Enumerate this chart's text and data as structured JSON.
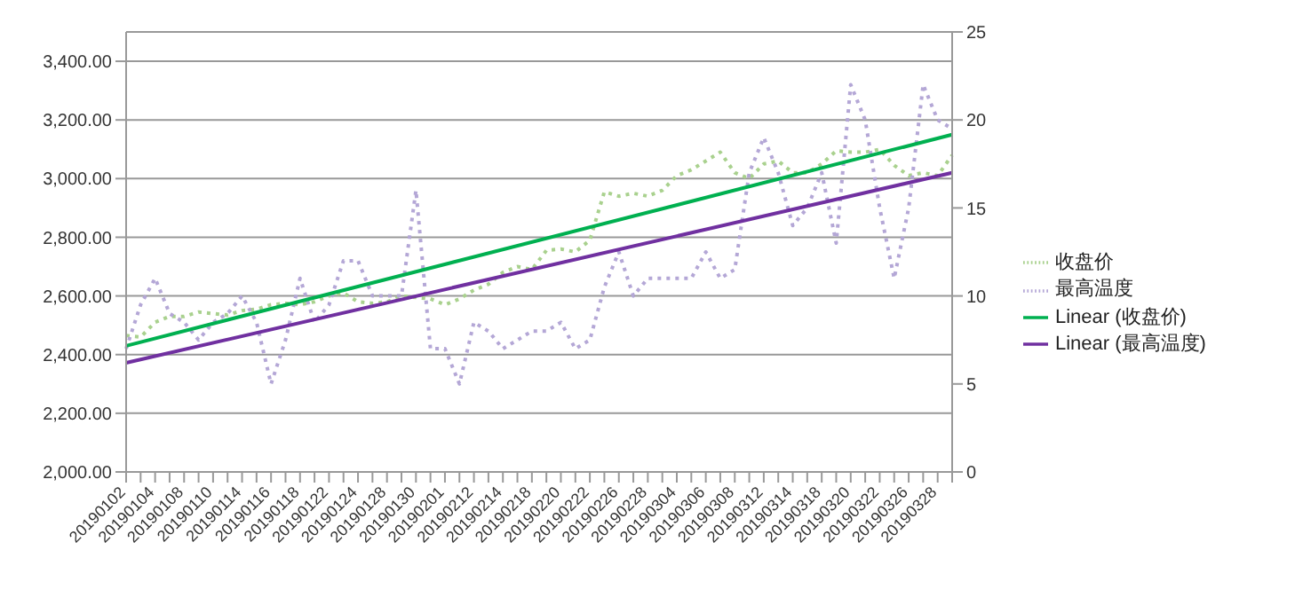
{
  "chart_data": {
    "type": "line",
    "categories": [
      "20190102",
      null,
      "20190104",
      null,
      "20190108",
      null,
      "20190110",
      null,
      "20190114",
      null,
      "20190116",
      null,
      "20190118",
      null,
      "20190122",
      null,
      "20190124",
      null,
      "20190128",
      null,
      "20190130",
      null,
      "20190201",
      null,
      "20190212",
      null,
      "20190214",
      null,
      "20190218",
      null,
      "20190220",
      null,
      "20190222",
      null,
      "20190226",
      null,
      "20190228",
      null,
      "20190304",
      null,
      "20190306",
      null,
      "20190308",
      null,
      "20190312",
      null,
      "20190314",
      null,
      "20190318",
      null,
      "20190320",
      null,
      "20190322",
      null,
      "20190326",
      null,
      "20190328",
      null
    ],
    "series": [
      {
        "name": "收盘价",
        "color": "#a9d18e",
        "line_style": "dotted",
        "values": [
          2465,
          2460,
          2510,
          2530,
          2530,
          2545,
          2540,
          2535,
          2550,
          2555,
          2570,
          2575,
          2570,
          2580,
          2600,
          2610,
          2580,
          2575,
          2580,
          2600,
          2595,
          2590,
          2570,
          2590,
          2620,
          2640,
          2680,
          2700,
          2690,
          2755,
          2760,
          2750,
          2790,
          2955,
          2940,
          2950,
          2940,
          2960,
          3010,
          3030,
          3060,
          3090,
          3020,
          3000,
          3050,
          3060,
          3020,
          3020,
          3050,
          3095,
          3090,
          3090,
          3100,
          3045,
          3010,
          3020,
          3010,
          3080
        ]
      },
      {
        "name": "最高温度",
        "color": "#b4a7d6",
        "line_style": "dotted",
        "axis": "y2",
        "values": [
          7,
          9.5,
          11,
          9,
          8.5,
          7.5,
          8.5,
          9,
          10,
          8.5,
          5,
          7.5,
          11,
          8.5,
          9.5,
          12,
          12,
          10,
          10,
          10,
          16,
          7,
          7,
          5,
          8.5,
          8,
          7,
          7.5,
          8,
          8,
          8.5,
          7,
          7.5,
          10.5,
          12.5,
          10,
          11,
          11,
          11,
          11,
          12.5,
          11,
          11.5,
          17,
          19,
          17,
          14,
          15,
          17,
          13,
          22,
          20,
          15,
          11,
          15,
          22,
          20,
          19.5
        ]
      },
      {
        "name": "Linear (收盘价)",
        "color": "#00b050",
        "line_style": "solid",
        "values": [
          2430,
          null,
          null,
          null,
          null,
          null,
          null,
          null,
          null,
          null,
          null,
          null,
          null,
          null,
          null,
          null,
          null,
          null,
          null,
          null,
          null,
          null,
          null,
          null,
          null,
          null,
          null,
          null,
          null,
          null,
          null,
          null,
          null,
          null,
          null,
          null,
          null,
          null,
          null,
          null,
          null,
          null,
          null,
          null,
          null,
          null,
          null,
          null,
          null,
          null,
          null,
          null,
          null,
          null,
          null,
          null,
          null,
          3150
        ]
      },
      {
        "name": "Linear (最高温度)",
        "color": "#7030a0",
        "line_style": "solid",
        "axis": "y2",
        "values": [
          6.2,
          null,
          null,
          null,
          null,
          null,
          null,
          null,
          null,
          null,
          null,
          null,
          null,
          null,
          null,
          null,
          null,
          null,
          null,
          null,
          null,
          null,
          null,
          null,
          null,
          null,
          null,
          null,
          null,
          null,
          null,
          null,
          null,
          null,
          null,
          null,
          null,
          null,
          null,
          null,
          null,
          null,
          null,
          null,
          null,
          null,
          null,
          null,
          null,
          null,
          null,
          null,
          null,
          null,
          null,
          null,
          null,
          17
        ]
      }
    ],
    "ylim": [
      2000,
      3500
    ],
    "yticks": [
      {
        "value": 2000,
        "label": "2,000.00"
      },
      {
        "value": 2200,
        "label": "2,200.00"
      },
      {
        "value": 2400,
        "label": "2,400.00"
      },
      {
        "value": 2600,
        "label": "2,600.00"
      },
      {
        "value": 2800,
        "label": "2,800.00"
      },
      {
        "value": 3000,
        "label": "3,000.00"
      },
      {
        "value": 3200,
        "label": "3,200.00"
      },
      {
        "value": 3400,
        "label": "3,400.00"
      }
    ],
    "y2lim": [
      0,
      25
    ],
    "y2ticks": [
      0,
      5,
      10,
      15,
      20,
      25
    ],
    "grid": "y",
    "legend": "right",
    "marker": "none"
  }
}
